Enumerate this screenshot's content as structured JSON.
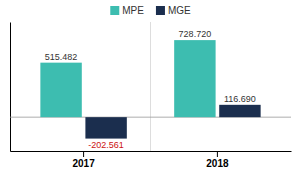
{
  "chart_data": {
    "type": "bar",
    "categories": [
      "2017",
      "2018"
    ],
    "series": [
      {
        "name": "MPE",
        "color": "#3dbdb0",
        "values": [
          515482,
          728720
        ],
        "value_labels": [
          "515.482",
          "728.720"
        ]
      },
      {
        "name": "MGE",
        "color": "#1b2e4e",
        "values": [
          -202561,
          116690
        ],
        "value_labels": [
          "-202.561",
          "116.690"
        ]
      }
    ],
    "ylim": [
      -320000,
      900000
    ],
    "yticks": [],
    "data_labels": true,
    "tick_labels": "x",
    "legend": "top",
    "grid": false
  }
}
